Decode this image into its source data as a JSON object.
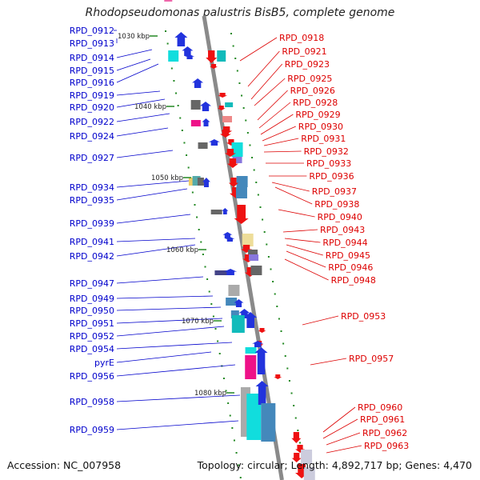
{
  "title": "Rhodopseudomonas palustris BisB5, complete genome",
  "accession": "Accession: NC_007958",
  "summary": "Topology: circular; Length: 4,892,717 bp; Genes: 4,470",
  "colors": {
    "backbone": "#8a8a8a",
    "left_label": "#0000cc",
    "right_label": "#dd0000",
    "tick": "#228822"
  },
  "scale_labels": [
    "1030 kbp",
    "1040 kbp",
    "1050 kbp",
    "1060 kbp",
    "1070 kbp",
    "1080 kbp"
  ],
  "left_genes": [
    "RPD_0912",
    "RPD_0913",
    "RPD_0914",
    "RPD_0915",
    "RPD_0916",
    "RPD_0919",
    "RPD_0920",
    "RPD_0922",
    "RPD_0924",
    "RPD_0927",
    "RPD_0934",
    "RPD_0935",
    "RPD_0939",
    "RPD_0941",
    "RPD_0942",
    "RPD_0947",
    "RPD_0949",
    "RPD_0950",
    "RPD_0951",
    "RPD_0952",
    "RPD_0954",
    "pyrE",
    "RPD_0956",
    "RPD_0958",
    "RPD_0959"
  ],
  "right_genes": [
    "RPD_0918",
    "RPD_0921",
    "RPD_0923",
    "RPD_0925",
    "RPD_0926",
    "RPD_0928",
    "RPD_0929",
    "RPD_0930",
    "RPD_0931",
    "RPD_0932",
    "RPD_0933",
    "RPD_0936",
    "RPD_0937",
    "RPD_0938",
    "RPD_0940",
    "RPD_0943",
    "RPD_0944",
    "RPD_0945",
    "RPD_0946",
    "RPD_0948",
    "RPD_0953",
    "RPD_0957",
    "RPD_0960",
    "RPD_0961",
    "RPD_0962",
    "RPD_0963"
  ]
}
